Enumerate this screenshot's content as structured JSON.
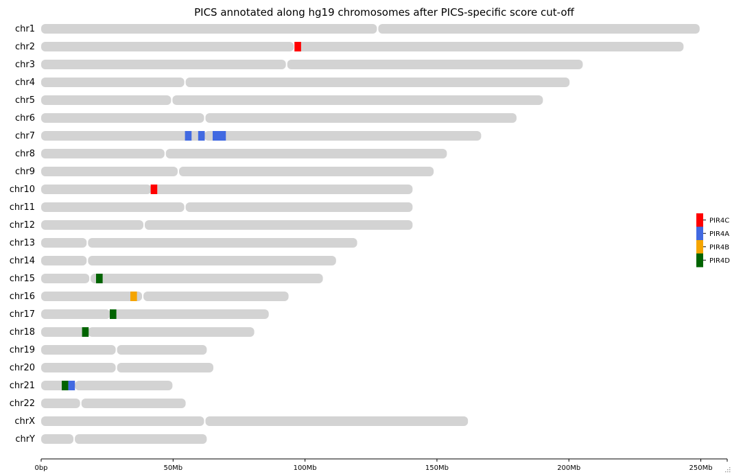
{
  "chart_data": {
    "type": "ideogram",
    "title": "PICS annotated along hg19 chromosomes after PICS-specific score cut-off",
    "xlabel": "",
    "ylabel": "",
    "x_unit": "Mb",
    "xlim": [
      0,
      260
    ],
    "xticks": [
      {
        "value": 0,
        "label": "0bp"
      },
      {
        "value": 50,
        "label": "50Mb"
      },
      {
        "value": 100,
        "label": "100Mb"
      },
      {
        "value": 150,
        "label": "150Mb"
      },
      {
        "value": 200,
        "label": "200Mb"
      },
      {
        "value": 250,
        "label": "250Mb"
      }
    ],
    "chromosome_color": "#d3d3d3",
    "chromosomes": [
      {
        "name": "chr1",
        "length": 249.3,
        "centromere": 127.5
      },
      {
        "name": "chr2",
        "length": 243.2,
        "centromere": 96.0
      },
      {
        "name": "chr3",
        "length": 205.0,
        "centromere": 93.0
      },
      {
        "name": "chr4",
        "length": 200.0,
        "centromere": 54.5
      },
      {
        "name": "chr5",
        "length": 189.9,
        "centromere": 49.5
      },
      {
        "name": "chr6",
        "length": 179.9,
        "centromere": 62.0
      },
      {
        "name": "chr7",
        "length": 166.5,
        "centromere": 61.5
      },
      {
        "name": "chr8",
        "length": 153.5,
        "centromere": 47.0
      },
      {
        "name": "chr9",
        "length": 148.5,
        "centromere": 52.0
      },
      {
        "name": "chr10",
        "length": 140.5,
        "centromere": 42.0
      },
      {
        "name": "chr11",
        "length": 140.5,
        "centromere": 54.5
      },
      {
        "name": "chr12",
        "length": 140.5,
        "centromere": 39.0
      },
      {
        "name": "chr13",
        "length": 119.5,
        "centromere": 17.5
      },
      {
        "name": "chr14",
        "length": 111.5,
        "centromere": 17.5
      },
      {
        "name": "chr15",
        "length": 106.5,
        "centromere": 18.5
      },
      {
        "name": "chr16",
        "length": 93.5,
        "centromere": 38.5
      },
      {
        "name": "chr17",
        "length": 86.0,
        "centromere": 26.5
      },
      {
        "name": "chr18",
        "length": 80.5,
        "centromere": 17.5
      },
      {
        "name": "chr19",
        "length": 62.5,
        "centromere": 28.5
      },
      {
        "name": "chr20",
        "length": 65.0,
        "centromere": 28.5
      },
      {
        "name": "chr21",
        "length": 49.5,
        "centromere": 12.5
      },
      {
        "name": "chr22",
        "length": 54.5,
        "centromere": 15.0
      },
      {
        "name": "chrX",
        "length": 161.5,
        "centromere": 62.0
      },
      {
        "name": "chrY",
        "length": 62.5,
        "centromere": 12.5
      }
    ],
    "series": [
      {
        "name": "PIR4C",
        "color": "#ff0000"
      },
      {
        "name": "PIR4A",
        "color": "#4169e1"
      },
      {
        "name": "PIR4B",
        "color": "#f5a500"
      },
      {
        "name": "PIR4D",
        "color": "#006400"
      }
    ],
    "annotations": [
      {
        "chromosome": "chr2",
        "series": "PIR4C",
        "start": 96.0,
        "end": 98.5
      },
      {
        "chromosome": "chr7",
        "series": "PIR4A",
        "start": 54.5,
        "end": 57.0
      },
      {
        "chromosome": "chr7",
        "series": "PIR4A",
        "start": 59.5,
        "end": 62.0
      },
      {
        "chromosome": "chr7",
        "series": "PIR4A",
        "start": 65.0,
        "end": 70.0
      },
      {
        "chromosome": "chr10",
        "series": "PIR4C",
        "start": 41.5,
        "end": 44.0
      },
      {
        "chromosome": "chr15",
        "series": "PIR4D",
        "start": 20.8,
        "end": 23.3
      },
      {
        "chromosome": "chr16",
        "series": "PIR4B",
        "start": 33.8,
        "end": 36.3
      },
      {
        "chromosome": "chr17",
        "series": "PIR4D",
        "start": 26.0,
        "end": 28.5
      },
      {
        "chromosome": "chr18",
        "series": "PIR4D",
        "start": 15.5,
        "end": 18.0
      },
      {
        "chromosome": "chr21",
        "series": "PIR4D",
        "start": 7.8,
        "end": 10.3
      },
      {
        "chromosome": "chr21",
        "series": "PIR4A",
        "start": 10.3,
        "end": 12.8
      }
    ],
    "legend": {
      "position": "right"
    }
  }
}
